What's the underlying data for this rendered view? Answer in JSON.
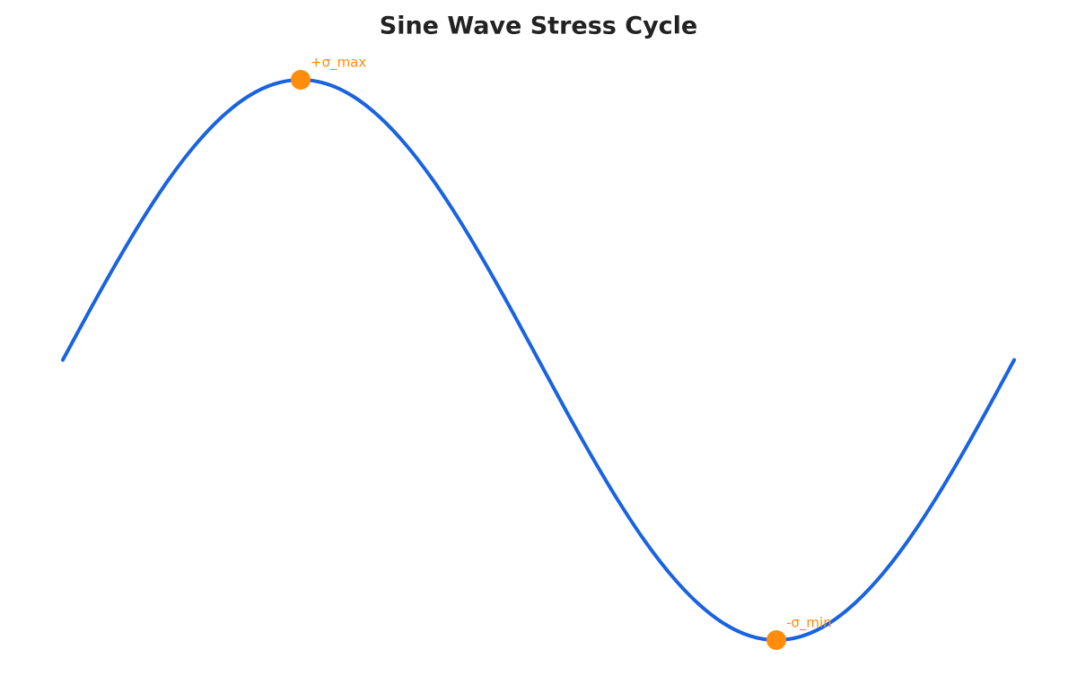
{
  "chart_data": {
    "type": "line",
    "title": "Sine Wave Stress Cycle",
    "x": [
      0,
      10,
      20,
      30,
      40,
      50,
      60,
      70,
      80,
      90,
      100,
      110,
      120,
      130,
      140,
      150,
      160,
      170,
      180,
      190,
      200,
      210,
      220,
      230,
      240,
      250,
      260,
      270,
      280,
      290,
      300,
      310,
      320,
      330,
      340,
      350,
      360
    ],
    "series": [
      {
        "color": "#1a63e0",
        "values": [
          0,
          0.174,
          0.342,
          0.5,
          0.643,
          0.766,
          0.866,
          0.94,
          0.985,
          1,
          0.985,
          0.94,
          0.866,
          0.766,
          0.643,
          0.5,
          0.342,
          0.174,
          0,
          -0.174,
          -0.342,
          -0.5,
          -0.643,
          -0.766,
          -0.866,
          -0.94,
          -0.985,
          -1,
          -0.985,
          -0.94,
          -0.866,
          -0.766,
          -0.643,
          -0.5,
          -0.342,
          -0.174,
          0
        ]
      }
    ],
    "xlim": [
      0,
      360
    ],
    "ylim": [
      -1,
      1
    ],
    "annotations": [
      {
        "text": "+σ_max",
        "x": 90,
        "y": 1,
        "color": "#ff8c0a"
      },
      {
        "text": "-σ_min",
        "x": 270,
        "y": -1,
        "color": "#ff8c0a"
      }
    ]
  }
}
